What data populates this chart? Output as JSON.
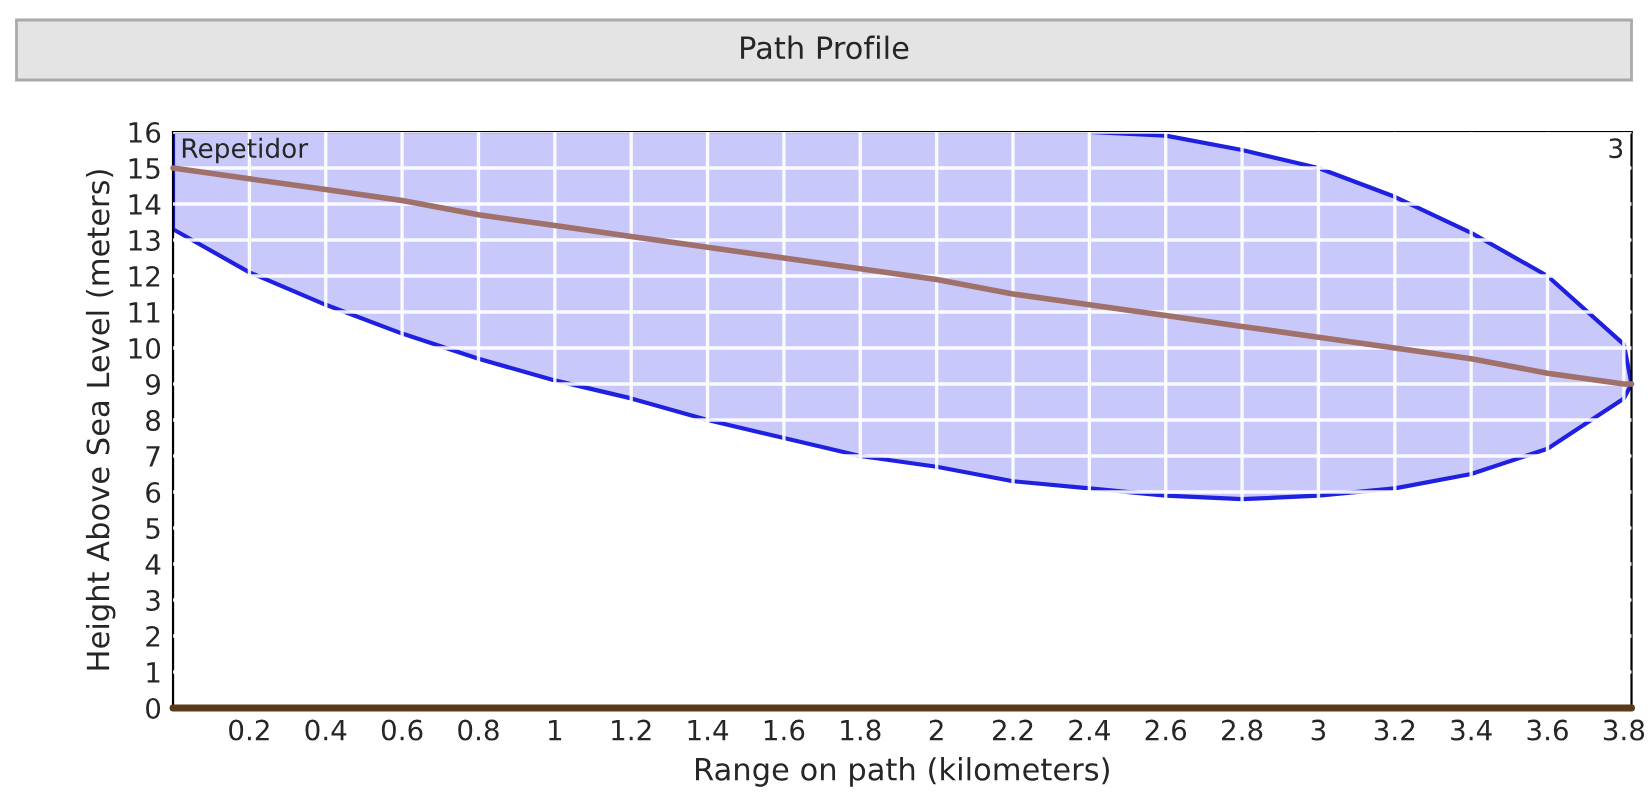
{
  "chart_data": {
    "type": "line",
    "title": "Path Profile",
    "xlabel": "Range on path (kilometers)",
    "ylabel": "Height Above Sea Level (meters)",
    "annotations": [
      "Repetidor",
      "3"
    ],
    "series": [
      {
        "color": "#a0706a",
        "x": [
          0,
          0.2,
          0.4,
          0.6,
          0.8,
          1.0,
          1.2,
          1.4,
          1.6,
          1.8,
          2.0,
          2.2,
          2.4,
          2.6,
          2.8,
          3.0,
          3.2,
          3.4,
          3.6,
          3.8,
          3.82
        ],
        "values": [
          15,
          14.7,
          14.4,
          14.1,
          13.7,
          13.4,
          13.1,
          12.8,
          12.5,
          12.2,
          11.9,
          11.5,
          11.2,
          10.9,
          10.6,
          10.3,
          10,
          9.7,
          9.3,
          9,
          9
        ],
        "lower": [
          13.3,
          12.1,
          11.2,
          10.4,
          9.7,
          9.1,
          8.6,
          8.0,
          7.5,
          7.0,
          6.7,
          6.3,
          6.1,
          5.9,
          5.8,
          5.9,
          6.1,
          6.5,
          7.2,
          8.6,
          9
        ],
        "upper": [
          16,
          16,
          16,
          16,
          16,
          16,
          16,
          16,
          16,
          16,
          16,
          16,
          16,
          15.9,
          15.5,
          15.0,
          14.2,
          13.2,
          12.0,
          10.1,
          9
        ]
      },
      {
        "color": "#5a3a1a",
        "x": [
          0,
          3.82
        ],
        "values": [
          0,
          0
        ]
      }
    ],
    "xlim": [
      0,
      3.82
    ],
    "xticks": [
      0.2,
      0.4,
      0.6,
      0.8,
      1,
      1.2,
      1.4,
      1.6,
      1.8,
      2,
      2.2,
      2.4,
      2.6,
      2.8,
      3,
      3.2,
      3.4,
      3.6,
      3.8
    ],
    "ylim": [
      0,
      16
    ],
    "yticks": [
      0,
      1,
      2,
      3,
      4,
      5,
      6,
      7,
      8,
      9,
      10,
      11,
      12,
      13,
      14,
      15,
      16
    ],
    "grid": true,
    "marker": "none",
    "line_style": "solid"
  }
}
